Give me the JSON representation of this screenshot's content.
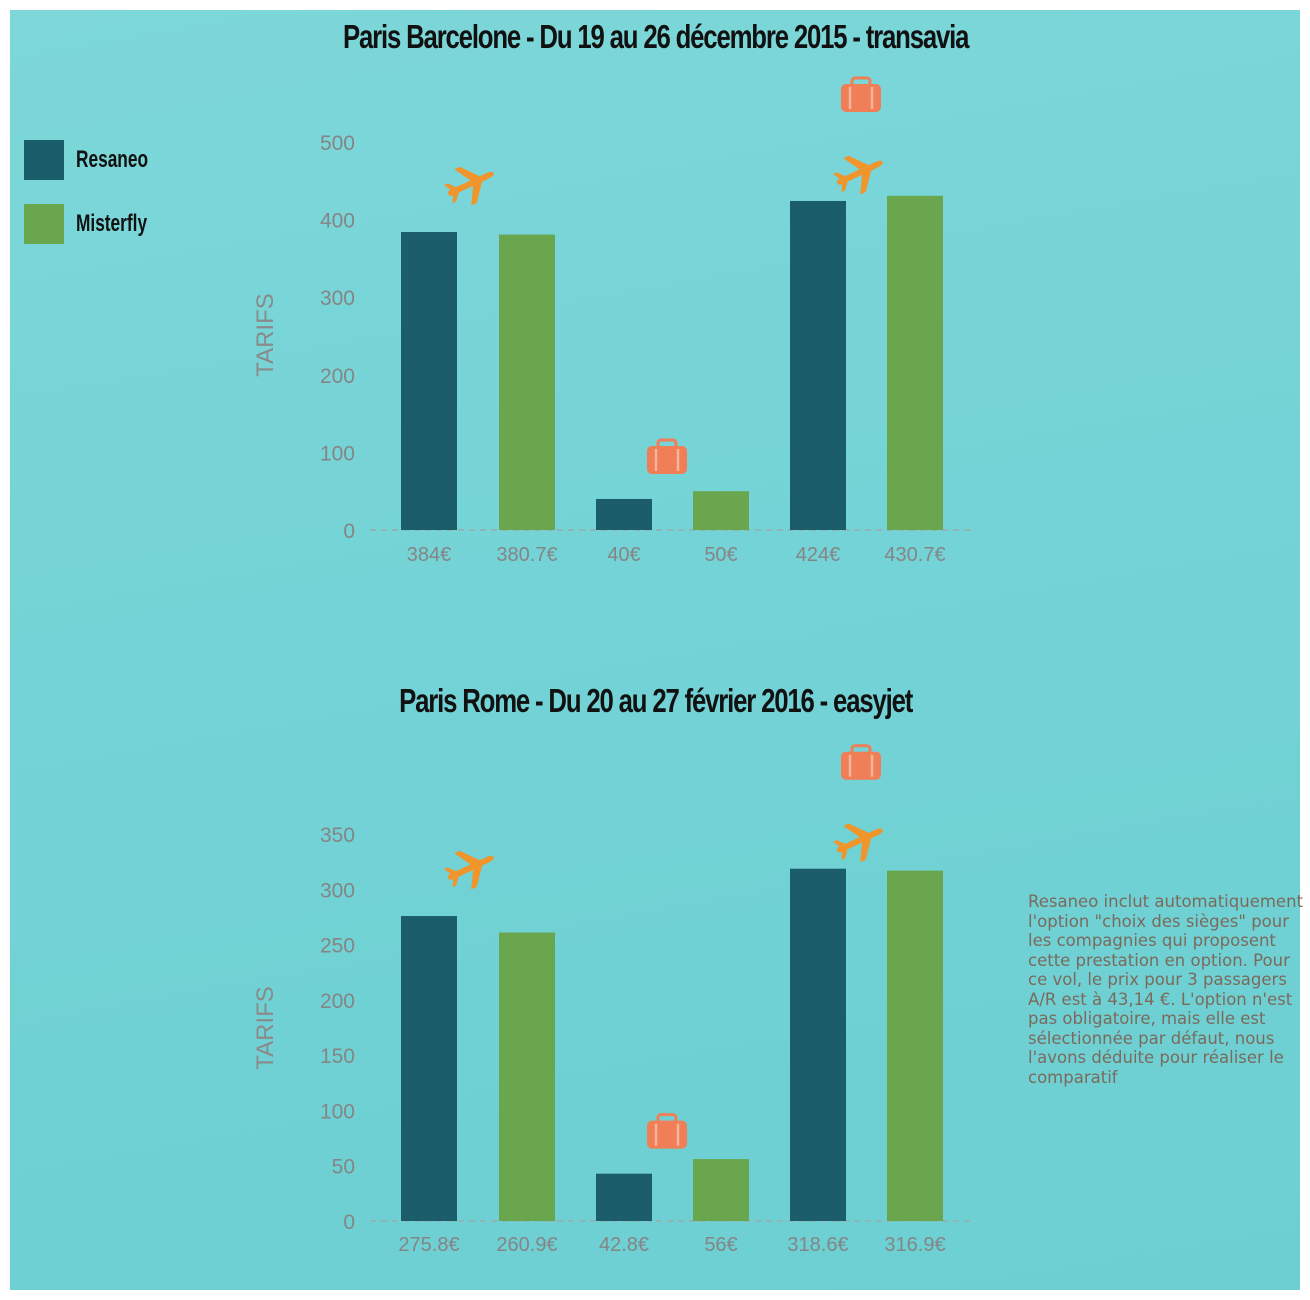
{
  "colors": {
    "background": "#74d3d6",
    "resaneo": "#1b5d6b",
    "misterfly": "#69a64e",
    "axis_text": "#8a8a8a",
    "tick_text": "#858585",
    "icon_orange": "#f07e56",
    "plane_orange": "#f0952b"
  },
  "legend": {
    "items": [
      {
        "label": "Resaneo",
        "color": "#1b5d6b"
      },
      {
        "label": "Misterfly",
        "color": "#69a64e"
      }
    ]
  },
  "note": "Resaneo inclut automatiquement l'option \"choix des sièges\" pour les compagnies qui proposent cette prestation en option. Pour ce vol, le prix pour 3 passagers A/R est à 43,14 €. L'option n'est pas obligatoire, mais elle est sélectionnée par défaut, nous l'avons déduite pour réaliser le comparatif",
  "chart_data": [
    {
      "type": "bar",
      "title": "Paris Barcelone - Du 19 au 26 décembre 2015 - transavia",
      "ylabel": "TARIFS",
      "ylim": [
        0,
        500
      ],
      "yticks": [
        0,
        100,
        200,
        300,
        400,
        500
      ],
      "grid": false,
      "bars": [
        {
          "series": "Resaneo",
          "value": 384,
          "label": "384€",
          "icons": [
            "plane-icon"
          ]
        },
        {
          "series": "Misterfly",
          "value": 380.7,
          "label": "380.7€",
          "icons": []
        },
        {
          "series": "Resaneo",
          "value": 40,
          "label": "40€",
          "icons": [
            "luggage-icon"
          ]
        },
        {
          "series": "Misterfly",
          "value": 50,
          "label": "50€",
          "icons": []
        },
        {
          "series": "Resaneo",
          "value": 424,
          "label": "424€",
          "icons": [
            "luggage-icon",
            "plane-icon"
          ]
        },
        {
          "series": "Misterfly",
          "value": 430.7,
          "label": "430.7€",
          "icons": []
        }
      ]
    },
    {
      "type": "bar",
      "title": "Paris Rome - Du 20 au 27 février 2016 - easyjet",
      "ylabel": "TARIFS",
      "ylim": [
        0,
        350
      ],
      "yticks": [
        0,
        50,
        100,
        150,
        200,
        250,
        300,
        350
      ],
      "grid": false,
      "bars": [
        {
          "series": "Resaneo",
          "value": 275.8,
          "label": "275.8€",
          "icons": [
            "plane-icon"
          ]
        },
        {
          "series": "Misterfly",
          "value": 260.9,
          "label": "260.9€",
          "icons": []
        },
        {
          "series": "Resaneo",
          "value": 42.8,
          "label": "42.8€",
          "icons": [
            "luggage-icon"
          ]
        },
        {
          "series": "Misterfly",
          "value": 56,
          "label": "56€",
          "icons": []
        },
        {
          "series": "Resaneo",
          "value": 318.6,
          "label": "318.6€",
          "icons": [
            "luggage-icon",
            "plane-icon"
          ]
        },
        {
          "series": "Misterfly",
          "value": 316.9,
          "label": "316.9€",
          "icons": []
        }
      ]
    }
  ]
}
